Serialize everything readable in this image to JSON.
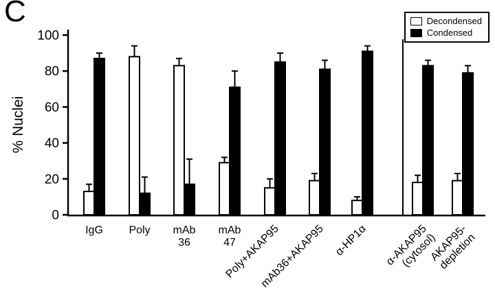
{
  "figure": {
    "panel_label": "C",
    "y_axis_label": "% Nuclei"
  },
  "legend": {
    "position": "upper right",
    "items": [
      {
        "label": "Decondensed",
        "fill": "#ffffff"
      },
      {
        "label": "Condensed",
        "fill": "#000000"
      }
    ]
  },
  "chart_data": {
    "type": "bar",
    "title": "",
    "xlabel": "",
    "ylabel": "% Nuclei",
    "ylim": [
      0,
      100
    ],
    "yticks": [
      0,
      20,
      40,
      60,
      80,
      100
    ],
    "grid": false,
    "legend_position": "upper right",
    "categories": [
      {
        "lines": [
          "IgG"
        ],
        "rotated": false
      },
      {
        "lines": [
          "Poly"
        ],
        "rotated": false
      },
      {
        "lines": [
          "mAb",
          "36"
        ],
        "rotated": false
      },
      {
        "lines": [
          "mAb",
          "47"
        ],
        "rotated": false
      },
      {
        "lines": [
          "Poly+AKAP95"
        ],
        "rotated": true
      },
      {
        "lines": [
          "mAb36+AKAP95"
        ],
        "rotated": true
      },
      {
        "lines": [
          "α-HP1α"
        ],
        "rotated": true
      },
      {
        "lines": [
          "α-AKAP95",
          "(cytosol)"
        ],
        "rotated": true
      },
      {
        "lines": [
          "AKAP95-",
          "depletion"
        ],
        "rotated": true
      }
    ],
    "separator_after_category_index": 6,
    "series": [
      {
        "name": "Decondensed",
        "fill": "#ffffff",
        "values": [
          13,
          88,
          83,
          29,
          15,
          19,
          8,
          18,
          19
        ],
        "errors": [
          4,
          6,
          4,
          3,
          5,
          4,
          2,
          4,
          4
        ]
      },
      {
        "name": "Condensed",
        "fill": "#000000",
        "values": [
          87,
          12,
          17,
          71,
          85,
          81,
          91,
          83,
          79
        ],
        "errors": [
          3,
          9,
          14,
          9,
          5,
          5,
          3,
          3,
          4
        ]
      }
    ]
  }
}
